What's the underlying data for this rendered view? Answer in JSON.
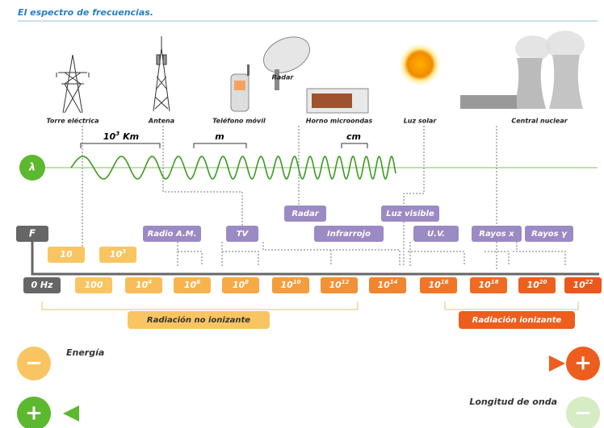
{
  "header": {
    "title": "El espectro de frecuencias."
  },
  "sources": [
    {
      "label": "Torre eléctrica"
    },
    {
      "label": "Antena"
    },
    {
      "label": "Teléfono móvil"
    },
    {
      "label": "Radar"
    },
    {
      "label": "Horno microondas"
    },
    {
      "label": "Luz solar"
    },
    {
      "label": "Central nuclear"
    }
  ],
  "wavelength": {
    "symbol": "λ",
    "scales": [
      {
        "base": "10",
        "exp": "3",
        "unit": "Km"
      },
      {
        "unit": "m"
      },
      {
        "unit": "cm"
      }
    ]
  },
  "frequency": {
    "symbol": "F",
    "upper": [
      {
        "base": "10"
      },
      {
        "base": "10",
        "exp": "3"
      }
    ],
    "lower": [
      {
        "base": "0 Hz"
      },
      {
        "base": "100"
      },
      {
        "base": "10",
        "exp": "4"
      },
      {
        "base": "10",
        "exp": "6"
      },
      {
        "base": "10",
        "exp": "8"
      },
      {
        "base": "10",
        "exp": "10"
      },
      {
        "base": "10",
        "exp": "12"
      },
      {
        "base": "10",
        "exp": "14"
      },
      {
        "base": "10",
        "exp": "16"
      },
      {
        "base": "10",
        "exp": "18"
      },
      {
        "base": "10",
        "exp": "20"
      },
      {
        "base": "10",
        "exp": "22"
      }
    ]
  },
  "bands": [
    "Radio A.M.",
    "TV",
    "Radar",
    "Infrarrojo",
    "Luz visible",
    "U.V.",
    "Rayos x",
    "Rayos γ"
  ],
  "radiation": {
    "non_ionizing": "Radiación no ionizante",
    "ionizing": "Radiación ionizante"
  },
  "energy": {
    "label": "Energía",
    "start": "−",
    "end": "+"
  },
  "wavelength_arrow": {
    "label": "Longitud de onda",
    "start": "+",
    "end": "−"
  }
}
